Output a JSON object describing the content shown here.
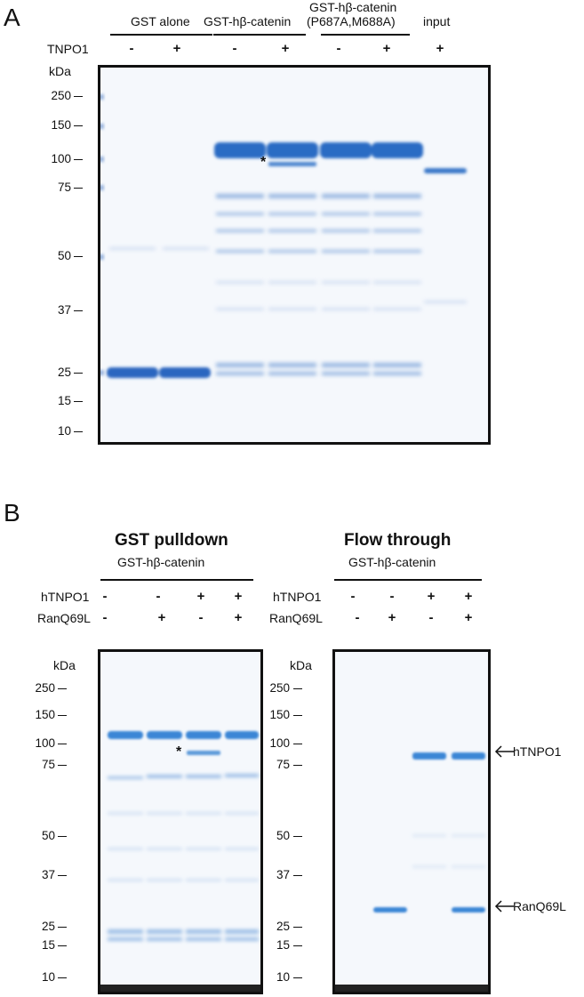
{
  "panel_a": {
    "letter": "A",
    "groups": [
      "GST alone",
      "GST-hβ-catenin",
      "GST-hβ-catenin",
      "(P687A,M688A)",
      "input"
    ],
    "row_label": "TNPO1",
    "signs": [
      "-",
      "+",
      "-",
      "+",
      "-",
      "+",
      "+"
    ],
    "unit": "kDa",
    "markers": [
      "250",
      "150",
      "100",
      "75",
      "50",
      "37",
      "25",
      "15",
      "10"
    ],
    "asterisk": "*",
    "band_color": "#2f6fc4"
  },
  "panel_b": {
    "letter": "B",
    "left": {
      "heading": "GST pulldown",
      "group": "GST-hβ-catenin",
      "row1_label": "hTNPO1",
      "row1_signs": [
        "-",
        "-",
        "+",
        "+"
      ],
      "row2_label": "RanQ69L",
      "row2_signs": [
        "-",
        "+",
        "-",
        "+"
      ],
      "unit": "kDa",
      "markers": [
        "250",
        "150",
        "100",
        "75",
        "50",
        "37",
        "25",
        "15",
        "10"
      ],
      "asterisk": "*"
    },
    "right": {
      "heading": "Flow through",
      "group": "GST-hβ-catenin",
      "row1_label": "hTNPO1",
      "row1_signs": [
        "-",
        "-",
        "+",
        "+"
      ],
      "row2_label": "RanQ69L",
      "row2_signs": [
        "-",
        "+",
        "-",
        "+"
      ],
      "unit": "kDa",
      "markers": [
        "250",
        "150",
        "100",
        "75",
        "50",
        "37",
        "25",
        "15",
        "10"
      ],
      "arrow_labels": [
        "hTNPO1",
        "RanQ69L"
      ]
    }
  }
}
